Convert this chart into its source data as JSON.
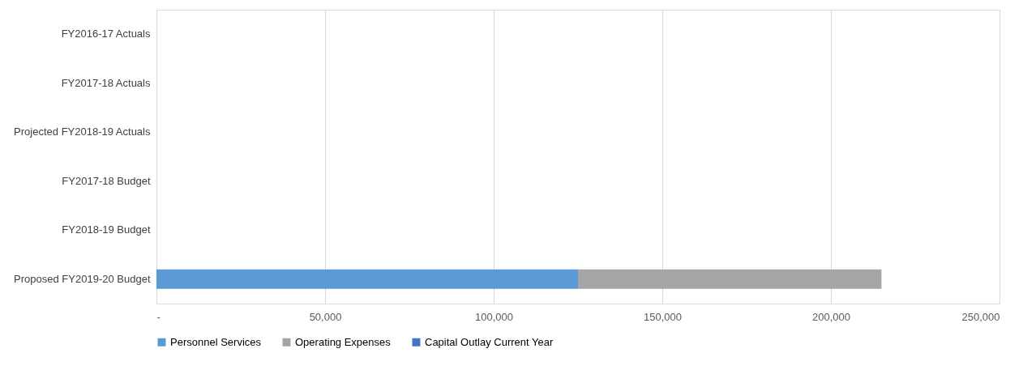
{
  "chart_data": {
    "type": "bar",
    "orientation": "horizontal",
    "stacked": true,
    "categories": [
      "FY2016-17 Actuals",
      "FY2017-18 Actuals",
      "Projected FY2018-19 Actuals",
      "FY2017-18 Budget",
      "FY2018-19 Budget",
      "Proposed  FY2019-20 Budget"
    ],
    "series": [
      {
        "name": "Personnel Services",
        "color": "#5b9bd5",
        "values": [
          null,
          null,
          null,
          null,
          null,
          125000
        ]
      },
      {
        "name": "Operating Expenses",
        "color": "#a5a5a5",
        "values": [
          null,
          null,
          null,
          null,
          null,
          90000
        ]
      },
      {
        "name": "Capital Outlay Current Year",
        "color": "#4472c4",
        "values": [
          null,
          null,
          null,
          null,
          null,
          0
        ]
      }
    ],
    "xlim": [
      0,
      250000
    ],
    "xticks": [
      {
        "value": 0,
        "label": "-"
      },
      {
        "value": 50000,
        "label": "50,000"
      },
      {
        "value": 100000,
        "label": "100,000"
      },
      {
        "value": 150000,
        "label": "150,000"
      },
      {
        "value": 200000,
        "label": "200,000"
      },
      {
        "value": 250000,
        "label": "250,000"
      }
    ],
    "grid": "x",
    "legend": "bottom"
  }
}
